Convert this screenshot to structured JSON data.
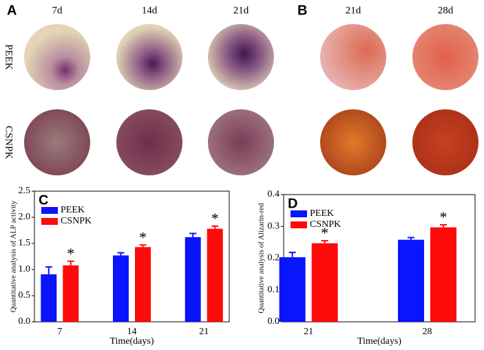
{
  "panels": {
    "a_label": "A",
    "b_label": "B",
    "a_columns": [
      "7d",
      "14d",
      "21d"
    ],
    "b_columns": [
      "21d",
      "28d"
    ],
    "rows": [
      "PEEK",
      "CSNPK"
    ]
  },
  "chart_data": [
    {
      "type": "bar",
      "panel": "C",
      "xlabel": "Time(days)",
      "ylabel": "Quantitative analysis of ALP activity",
      "categories": [
        "7",
        "14",
        "21"
      ],
      "ylim": [
        0,
        2.5
      ],
      "yticks": [
        {
          "value": 0,
          "label": "0.0"
        },
        0.5,
        {
          "value": 1,
          "label": "1.0"
        },
        1.5,
        {
          "value": 2,
          "label": "2.0"
        },
        2.5
      ],
      "legend": "upper-left",
      "grid": false,
      "series": [
        {
          "name": "PEEK",
          "color": "#0a14ff",
          "values": [
            0.91,
            1.27,
            1.62
          ],
          "errors": [
            0.14,
            0.05,
            0.07
          ]
        },
        {
          "name": "CSNPK",
          "color": "#ff0a0a",
          "values": [
            1.08,
            1.43,
            1.78
          ],
          "errors": [
            0.08,
            0.04,
            0.05
          ],
          "markers": [
            "*",
            "*",
            "*"
          ]
        }
      ]
    },
    {
      "type": "bar",
      "panel": "D",
      "xlabel": "Time(days)",
      "ylabel": "Quantitative analysis of Alizarin-red",
      "categories": [
        "21",
        "28"
      ],
      "ylim": [
        0,
        0.4
      ],
      "yticks": [
        {
          "value": 0,
          "label": "0.0"
        },
        0.1,
        0.2,
        0.3,
        0.4
      ],
      "legend": "upper-left",
      "grid": false,
      "series": [
        {
          "name": "PEEK",
          "color": "#0a14ff",
          "values": [
            0.203,
            0.258
          ],
          "errors": [
            0.015,
            0.007
          ]
        },
        {
          "name": "CSNPK",
          "color": "#ff0a0a",
          "values": [
            0.247,
            0.297
          ],
          "errors": [
            0.008,
            0.008
          ],
          "markers": [
            "*",
            "*"
          ]
        }
      ]
    }
  ]
}
